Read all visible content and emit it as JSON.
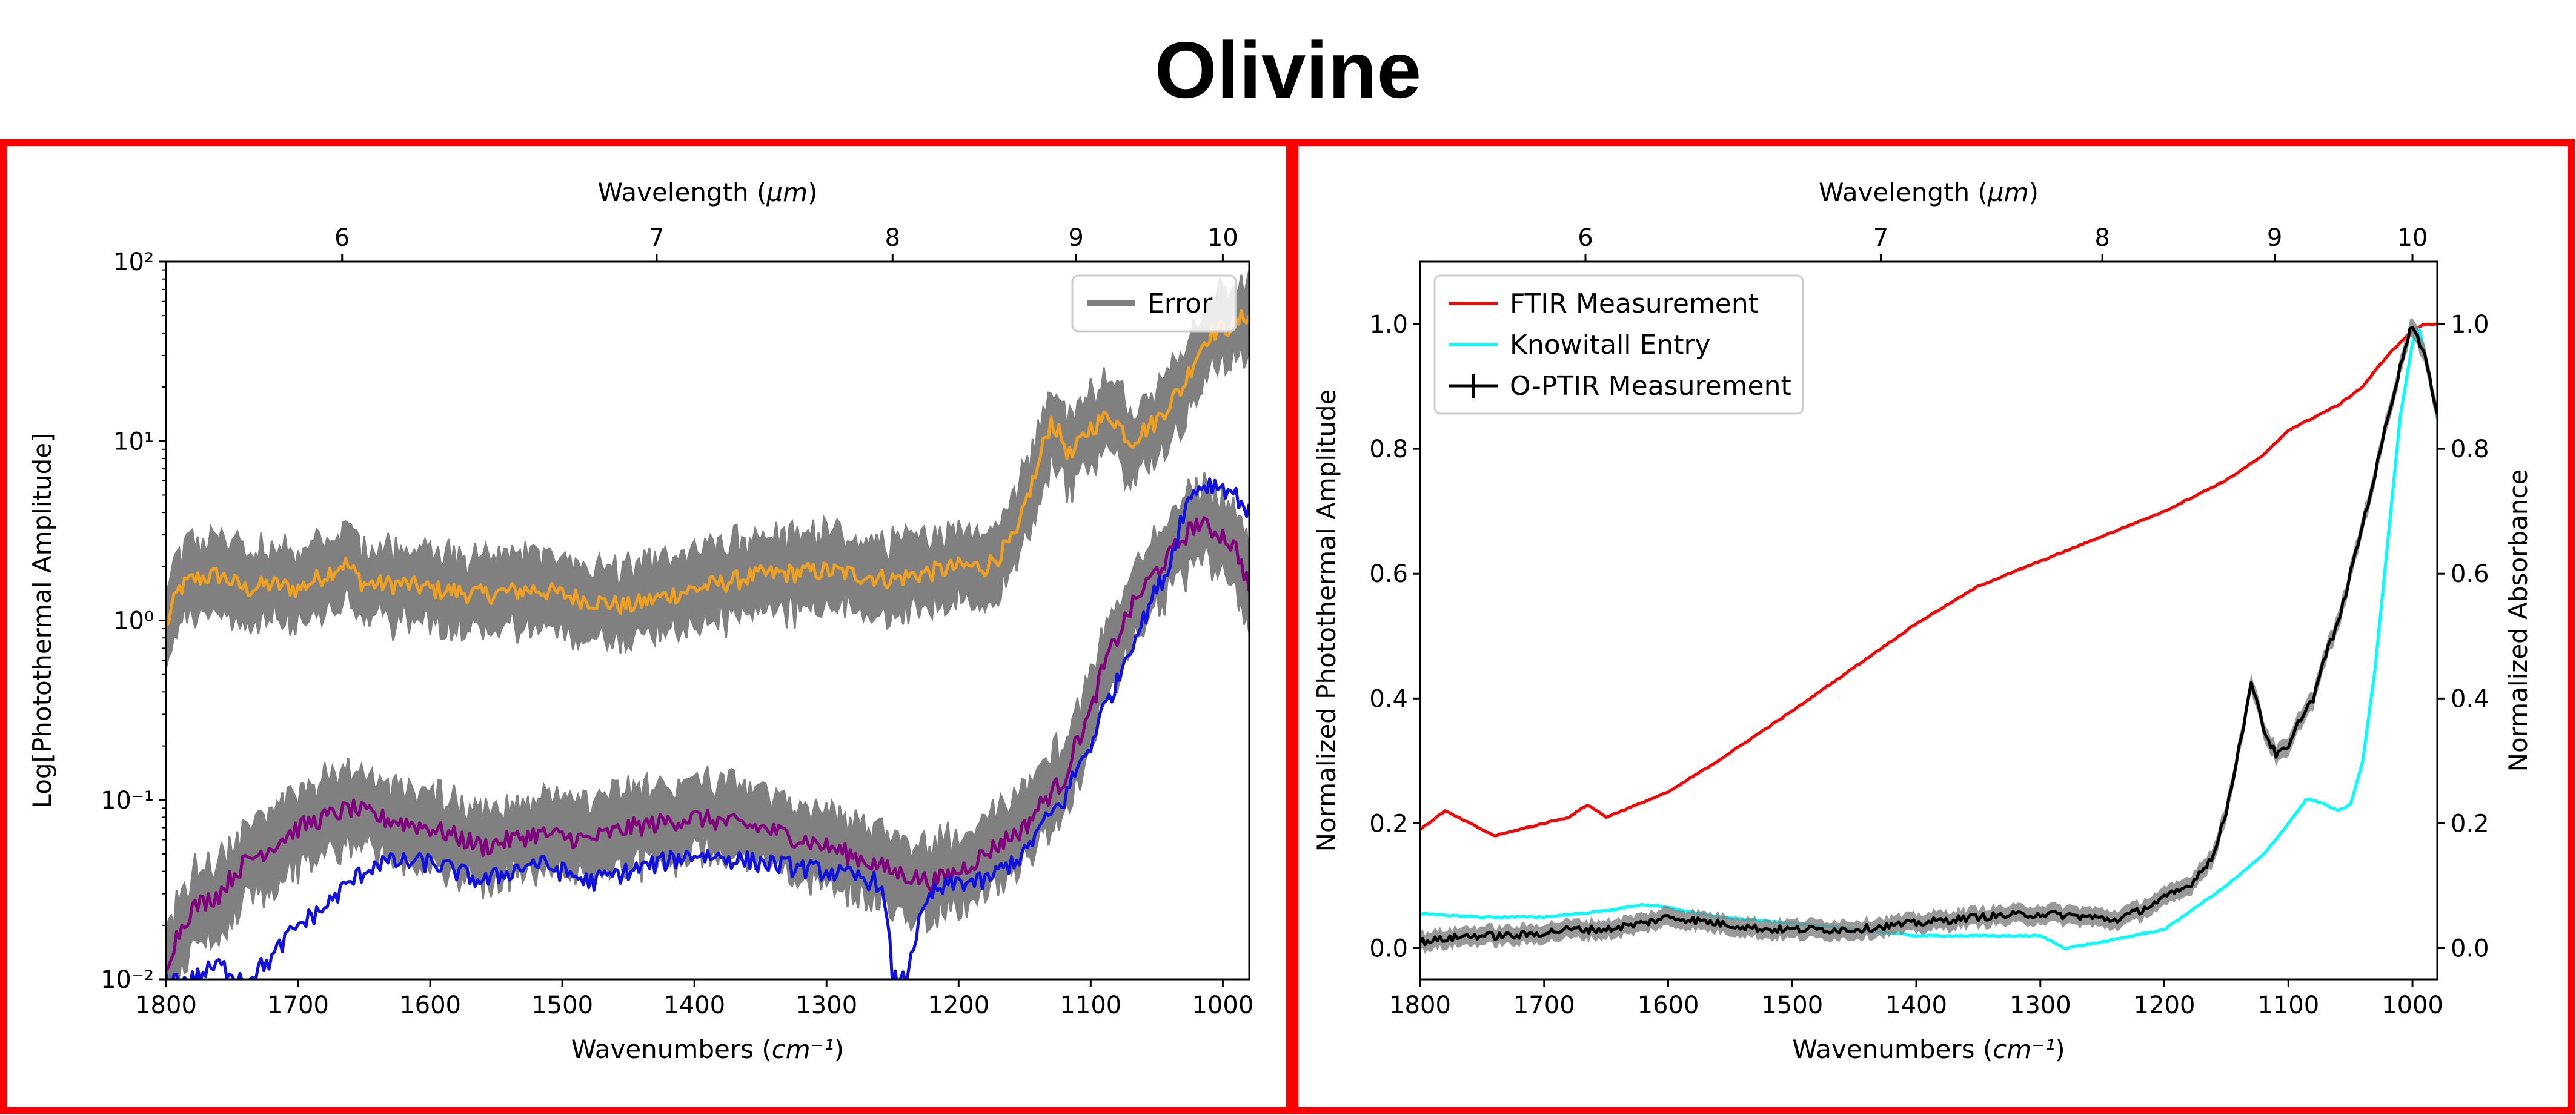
{
  "title": "Olivine",
  "colors": {
    "frame": "#ff0000",
    "error": "#808080",
    "orange": "#f0a020",
    "purple": "#800080",
    "blue": "#1010e0",
    "ftir": "#ff0000",
    "knowitall": "#00ffff",
    "optir": "#000000"
  },
  "chart_data": [
    {
      "type": "line",
      "yscale": "log",
      "xlabel": "Wavenumbers (cm⁻¹)",
      "ylabel": "Log[Photothermal Amplitude]",
      "top_xlabel": "Wavelength (μm)",
      "xlim": [
        1800,
        980
      ],
      "ylim": [
        0.01,
        100
      ],
      "x_ticks": [
        1800,
        1700,
        1600,
        1500,
        1400,
        1300,
        1200,
        1100,
        1000
      ],
      "y_ticks": [
        0.01,
        0.1,
        1,
        10,
        100
      ],
      "y_tick_labels": [
        "10⁻²",
        "10⁻¹",
        "10⁰",
        "10¹",
        "10²"
      ],
      "top_ticks": [
        6,
        7,
        8,
        9,
        10
      ],
      "legend": {
        "location": "top-right",
        "entries": [
          {
            "label": "Error",
            "color": "#808080"
          }
        ]
      },
      "series": [
        {
          "name": "orange",
          "color": "#f0a020",
          "error_band": true,
          "x": [
            1800,
            1790,
            1780,
            1760,
            1740,
            1720,
            1700,
            1680,
            1665,
            1650,
            1620,
            1600,
            1560,
            1520,
            1480,
            1450,
            1400,
            1350,
            1300,
            1250,
            1200,
            1180,
            1170,
            1155,
            1140,
            1130,
            1115,
            1100,
            1085,
            1070,
            1050,
            1030,
            1010,
            990,
            980
          ],
          "y": [
            0.9,
            1.5,
            1.7,
            1.8,
            1.5,
            1.6,
            1.5,
            1.8,
            2.1,
            1.6,
            1.6,
            1.5,
            1.4,
            1.5,
            1.3,
            1.2,
            1.5,
            1.8,
            1.9,
            1.7,
            2.0,
            2.0,
            2.3,
            3.0,
            7.0,
            13.0,
            8.0,
            12.0,
            14.0,
            10.0,
            13.0,
            20.0,
            40.0,
            45.0,
            52.0
          ]
        },
        {
          "name": "purple",
          "color": "#800080",
          "error_band": true,
          "x": [
            1800,
            1780,
            1760,
            1740,
            1720,
            1700,
            1680,
            1660,
            1640,
            1600,
            1560,
            1520,
            1480,
            1450,
            1400,
            1350,
            1300,
            1250,
            1220,
            1200,
            1180,
            1150,
            1120,
            1100,
            1080,
            1060,
            1040,
            1020,
            1000,
            990,
            980
          ],
          "y": [
            0.012,
            0.025,
            0.03,
            0.045,
            0.055,
            0.07,
            0.08,
            0.09,
            0.08,
            0.07,
            0.055,
            0.065,
            0.06,
            0.07,
            0.08,
            0.07,
            0.055,
            0.04,
            0.035,
            0.04,
            0.05,
            0.07,
            0.13,
            0.3,
            0.8,
            1.5,
            2.3,
            3.5,
            3.0,
            2.5,
            1.5
          ]
        },
        {
          "name": "blue",
          "color": "#1010e0",
          "error_band": false,
          "x": [
            1780,
            1760,
            1740,
            1720,
            1700,
            1680,
            1660,
            1640,
            1600,
            1560,
            1520,
            1480,
            1450,
            1400,
            1350,
            1300,
            1260,
            1250,
            1240,
            1220,
            1200,
            1180,
            1150,
            1120,
            1100,
            1080,
            1060,
            1040,
            1030,
            1020,
            1010,
            1000,
            990,
            980
          ],
          "y": [
            0.01,
            0.012,
            0.01,
            0.013,
            0.02,
            0.025,
            0.035,
            0.045,
            0.045,
            0.035,
            0.045,
            0.035,
            0.04,
            0.05,
            0.045,
            0.04,
            0.035,
            0.01,
            0.01,
            0.03,
            0.035,
            0.035,
            0.05,
            0.1,
            0.2,
            0.45,
            1.0,
            2.0,
            4.0,
            5.5,
            5.8,
            5.6,
            5.0,
            4.0
          ]
        }
      ]
    },
    {
      "type": "line",
      "xlabel": "Wavenumbers (cm⁻¹)",
      "ylabel": "Normalized Photothermal Amplitude",
      "ylabel_right": "Normalized Absorbance",
      "top_xlabel": "Wavelength (μm)",
      "xlim": [
        1800,
        980
      ],
      "ylim": [
        -0.05,
        1.1
      ],
      "x_ticks": [
        1800,
        1700,
        1600,
        1500,
        1400,
        1300,
        1200,
        1100,
        1000
      ],
      "y_ticks": [
        0.0,
        0.2,
        0.4,
        0.6,
        0.8,
        1.0
      ],
      "y_tick_labels": [
        "0.0",
        "0.2",
        "0.4",
        "0.6",
        "0.8",
        "1.0"
      ],
      "top_ticks": [
        6,
        7,
        8,
        9,
        10
      ],
      "legend": {
        "location": "top-left",
        "entries": [
          {
            "label": "FTIR Measurement",
            "color": "#ff0000"
          },
          {
            "label": "Knowitall Entry",
            "color": "#00ffff"
          },
          {
            "label": "O-PTIR Measurement",
            "color": "#000000"
          }
        ]
      },
      "series": [
        {
          "name": "FTIR Measurement",
          "color": "#ff0000",
          "x": [
            1800,
            1780,
            1760,
            1740,
            1720,
            1700,
            1680,
            1665,
            1650,
            1600,
            1560,
            1500,
            1450,
            1400,
            1350,
            1300,
            1250,
            1200,
            1150,
            1120,
            1100,
            1080,
            1060,
            1040,
            1020,
            1010,
            1000,
            990,
            980
          ],
          "y": [
            0.19,
            0.22,
            0.2,
            0.18,
            0.19,
            0.2,
            0.21,
            0.23,
            0.21,
            0.25,
            0.3,
            0.38,
            0.45,
            0.52,
            0.58,
            0.62,
            0.66,
            0.7,
            0.75,
            0.79,
            0.83,
            0.85,
            0.87,
            0.9,
            0.95,
            0.97,
            0.99,
            1.0,
            1.0
          ]
        },
        {
          "name": "Knowitall Entry",
          "color": "#00ffff",
          "x": [
            1800,
            1750,
            1700,
            1650,
            1620,
            1600,
            1560,
            1500,
            1450,
            1400,
            1350,
            1300,
            1280,
            1250,
            1200,
            1150,
            1120,
            1100,
            1085,
            1070,
            1060,
            1050,
            1040,
            1030,
            1020,
            1010,
            1000,
            995,
            990,
            985,
            980
          ],
          "y": [
            0.055,
            0.05,
            0.05,
            0.06,
            0.07,
            0.065,
            0.05,
            0.04,
            0.03,
            0.02,
            0.02,
            0.02,
            0.0,
            0.01,
            0.03,
            0.1,
            0.15,
            0.2,
            0.24,
            0.23,
            0.22,
            0.23,
            0.3,
            0.45,
            0.65,
            0.85,
            0.97,
            1.0,
            0.95,
            0.9,
            0.85
          ]
        },
        {
          "name": "O-PTIR Measurement",
          "color": "#000000",
          "x": [
            1800,
            1760,
            1720,
            1680,
            1650,
            1620,
            1600,
            1560,
            1520,
            1480,
            1450,
            1400,
            1350,
            1300,
            1260,
            1240,
            1220,
            1200,
            1180,
            1160,
            1150,
            1140,
            1130,
            1125,
            1120,
            1110,
            1100,
            1090,
            1080,
            1070,
            1060,
            1050,
            1040,
            1030,
            1020,
            1010,
            1005,
            1000,
            990,
            980
          ],
          "y": [
            0.01,
            0.02,
            0.02,
            0.03,
            0.03,
            0.04,
            0.05,
            0.04,
            0.03,
            0.03,
            0.03,
            0.04,
            0.05,
            0.055,
            0.05,
            0.045,
            0.06,
            0.08,
            0.1,
            0.15,
            0.22,
            0.32,
            0.42,
            0.4,
            0.35,
            0.31,
            0.32,
            0.37,
            0.4,
            0.47,
            0.52,
            0.6,
            0.68,
            0.76,
            0.85,
            0.93,
            0.97,
            1.0,
            0.95,
            0.85
          ]
        }
      ]
    }
  ]
}
